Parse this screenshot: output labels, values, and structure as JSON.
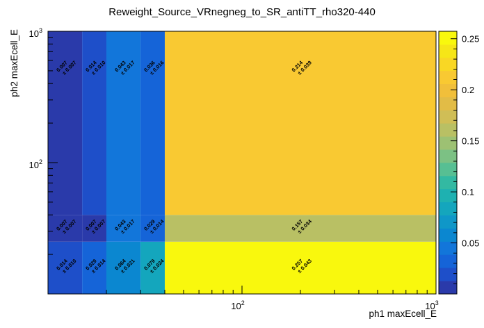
{
  "chart_data": {
    "type": "heatmap",
    "title": "Reweight_Source_VRnegneg_to_SR_antiTT_rho320-440",
    "xlabel": "ph1 maxEcell_E",
    "ylabel": "ph2 maxEcell_E",
    "x_scale": "log",
    "y_scale": "log",
    "xlim": [
      10,
      1000
    ],
    "ylim": [
      10,
      1000
    ],
    "x_edges": [
      10,
      15,
      20,
      30,
      40,
      1000
    ],
    "y_edges": [
      10,
      25,
      40,
      1000
    ],
    "x_tick_labels": [
      "10^2",
      "10^3"
    ],
    "y_tick_labels": [
      "10^2",
      "10^3"
    ],
    "zlim": [
      0,
      0.2573
    ],
    "z_ticks": [
      "0.05",
      "0.1",
      "0.15",
      "0.2",
      "0.25"
    ],
    "cells": [
      {
        "x": [
          10,
          15
        ],
        "y": [
          10,
          25
        ],
        "value": 0.014,
        "error": 0.01,
        "label": "0.014",
        "err_label": "± 0.010"
      },
      {
        "x": [
          15,
          20
        ],
        "y": [
          10,
          25
        ],
        "value": 0.029,
        "error": 0.014,
        "label": "0.029",
        "err_label": "± 0.014"
      },
      {
        "x": [
          20,
          30
        ],
        "y": [
          10,
          25
        ],
        "value": 0.064,
        "error": 0.021,
        "label": "0.064",
        "err_label": "± 0.021"
      },
      {
        "x": [
          30,
          40
        ],
        "y": [
          10,
          25
        ],
        "value": 0.079,
        "error": 0.024,
        "label": "0.079",
        "err_label": "± 0.024"
      },
      {
        "x": [
          40,
          1000
        ],
        "y": [
          10,
          25
        ],
        "value": 0.257,
        "error": 0.043,
        "label": "0.257",
        "err_label": "± 0.043"
      },
      {
        "x": [
          10,
          15
        ],
        "y": [
          25,
          40
        ],
        "value": 0.007,
        "error": 0.007,
        "label": "0.007",
        "err_label": "± 0.007"
      },
      {
        "x": [
          15,
          20
        ],
        "y": [
          25,
          40
        ],
        "value": 0.007,
        "error": 0.007,
        "label": "0.007",
        "err_label": "± 0.007"
      },
      {
        "x": [
          20,
          30
        ],
        "y": [
          25,
          40
        ],
        "value": 0.043,
        "error": 0.017,
        "label": "0.043",
        "err_label": "± 0.017"
      },
      {
        "x": [
          30,
          40
        ],
        "y": [
          25,
          40
        ],
        "value": 0.029,
        "error": 0.014,
        "label": "0.029",
        "err_label": "± 0.014"
      },
      {
        "x": [
          40,
          1000
        ],
        "y": [
          25,
          40
        ],
        "value": 0.157,
        "error": 0.034,
        "label": "0.157",
        "err_label": "± 0.034"
      },
      {
        "x": [
          10,
          15
        ],
        "y": [
          40,
          1000
        ],
        "value": 0.007,
        "error": 0.007,
        "label": "0.007",
        "err_label": "± 0.007"
      },
      {
        "x": [
          15,
          20
        ],
        "y": [
          40,
          1000
        ],
        "value": 0.014,
        "error": 0.01,
        "label": "0.014",
        "err_label": "± 0.010"
      },
      {
        "x": [
          20,
          30
        ],
        "y": [
          40,
          1000
        ],
        "value": 0.043,
        "error": 0.017,
        "label": "0.043",
        "err_label": "± 0.017"
      },
      {
        "x": [
          30,
          40
        ],
        "y": [
          40,
          1000
        ],
        "value": 0.036,
        "error": 0.016,
        "label": "0.036",
        "err_label": "± 0.016"
      },
      {
        "x": [
          40,
          1000
        ],
        "y": [
          40,
          1000
        ],
        "value": 0.214,
        "error": 0.039,
        "label": "0.214",
        "err_label": "± 0.039"
      }
    ],
    "palette": [
      "#2a3aaa",
      "#1e4fc9",
      "#1564d8",
      "#1276da",
      "#0b87d0",
      "#0f97c8",
      "#14a6bd",
      "#1eb1b1",
      "#33b9a2",
      "#57bf93",
      "#7cc184",
      "#9dc173",
      "#b9c064",
      "#d0be56",
      "#e2bc46",
      "#f1bf3a",
      "#f9c932",
      "#f9d724",
      "#f6e617",
      "#f9f80d"
    ],
    "legend": "right",
    "grid": false
  }
}
